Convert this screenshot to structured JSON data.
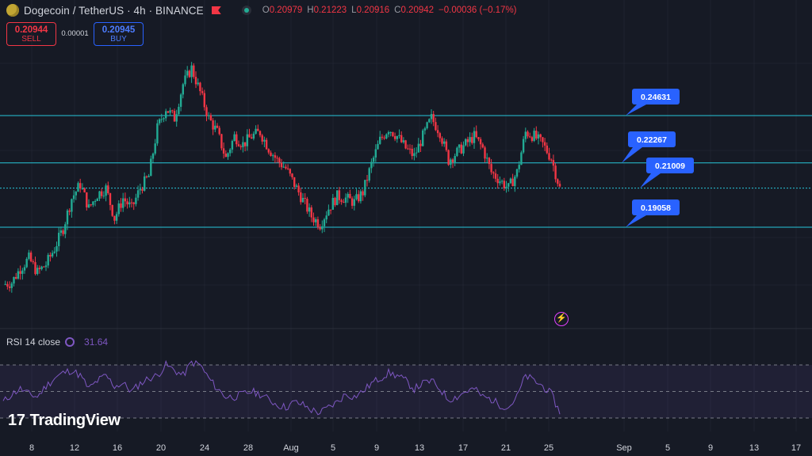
{
  "header": {
    "symbol": "Dogecoin / TetherUS · 4h · BINANCE",
    "ohlc": {
      "o_label": "O",
      "o": "0.20979",
      "h_label": "H",
      "h": "0.21223",
      "l_label": "L",
      "l": "0.20916",
      "c_label": "C",
      "c": "0.20942",
      "change": "−0.00036 (−0.17%)"
    }
  },
  "trade": {
    "sell_price": "0.20944",
    "sell_label": "SELL",
    "spread": "0.00001",
    "buy_price": "0.20945",
    "buy_label": "BUY"
  },
  "rsi": {
    "label": "RSI 14 close",
    "value": "31.64"
  },
  "brand": {
    "name": "TradingView"
  },
  "colors": {
    "up": "#22ab94",
    "down": "#f23645",
    "line": "#26c6da",
    "rsi": "#7e57c2",
    "label": "#2962ff"
  },
  "chart_data": {
    "type": "candlestick",
    "x_tick_labels": [
      "8",
      "12",
      "16",
      "20",
      "24",
      "28",
      "Aug",
      "5",
      "9",
      "13",
      "17",
      "21",
      "25",
      "Sep",
      "5",
      "9",
      "13",
      "17"
    ],
    "price_levels": [
      {
        "value": 0.24631,
        "label": "0.24631"
      },
      {
        "value": 0.22267,
        "label": "0.22267"
      },
      {
        "value": 0.21009,
        "label": "0.21009"
      },
      {
        "value": 0.19058,
        "label": "0.19058"
      }
    ],
    "price_path": [
      0.162,
      0.163,
      0.17,
      0.175,
      0.168,
      0.172,
      0.18,
      0.19,
      0.205,
      0.212,
      0.2,
      0.207,
      0.21,
      0.195,
      0.205,
      0.2,
      0.21,
      0.216,
      0.24,
      0.25,
      0.245,
      0.262,
      0.27,
      0.258,
      0.245,
      0.238,
      0.225,
      0.236,
      0.232,
      0.236,
      0.238,
      0.23,
      0.224,
      0.22,
      0.212,
      0.204,
      0.196,
      0.192,
      0.2,
      0.206,
      0.205,
      0.203,
      0.208,
      0.222,
      0.234,
      0.24,
      0.236,
      0.23,
      0.226,
      0.236,
      0.245,
      0.238,
      0.224,
      0.228,
      0.232,
      0.236,
      0.23,
      0.218,
      0.214,
      0.21,
      0.218,
      0.238,
      0.236,
      0.232,
      0.225,
      0.21
    ],
    "rsi_path": [
      42,
      48,
      52,
      48,
      46,
      54,
      60,
      64,
      66,
      62,
      52,
      58,
      62,
      54,
      56,
      50,
      56,
      60,
      62,
      70,
      66,
      62,
      72,
      70,
      60,
      52,
      46,
      46,
      48,
      50,
      48,
      44,
      40,
      38,
      42,
      40,
      36,
      34,
      38,
      42,
      48,
      46,
      50,
      56,
      60,
      64,
      62,
      58,
      52,
      56,
      58,
      52,
      44,
      46,
      50,
      52,
      46,
      44,
      40,
      38,
      46,
      62,
      58,
      54,
      48,
      34
    ],
    "rsi_levels": [
      70,
      50,
      30
    ]
  }
}
